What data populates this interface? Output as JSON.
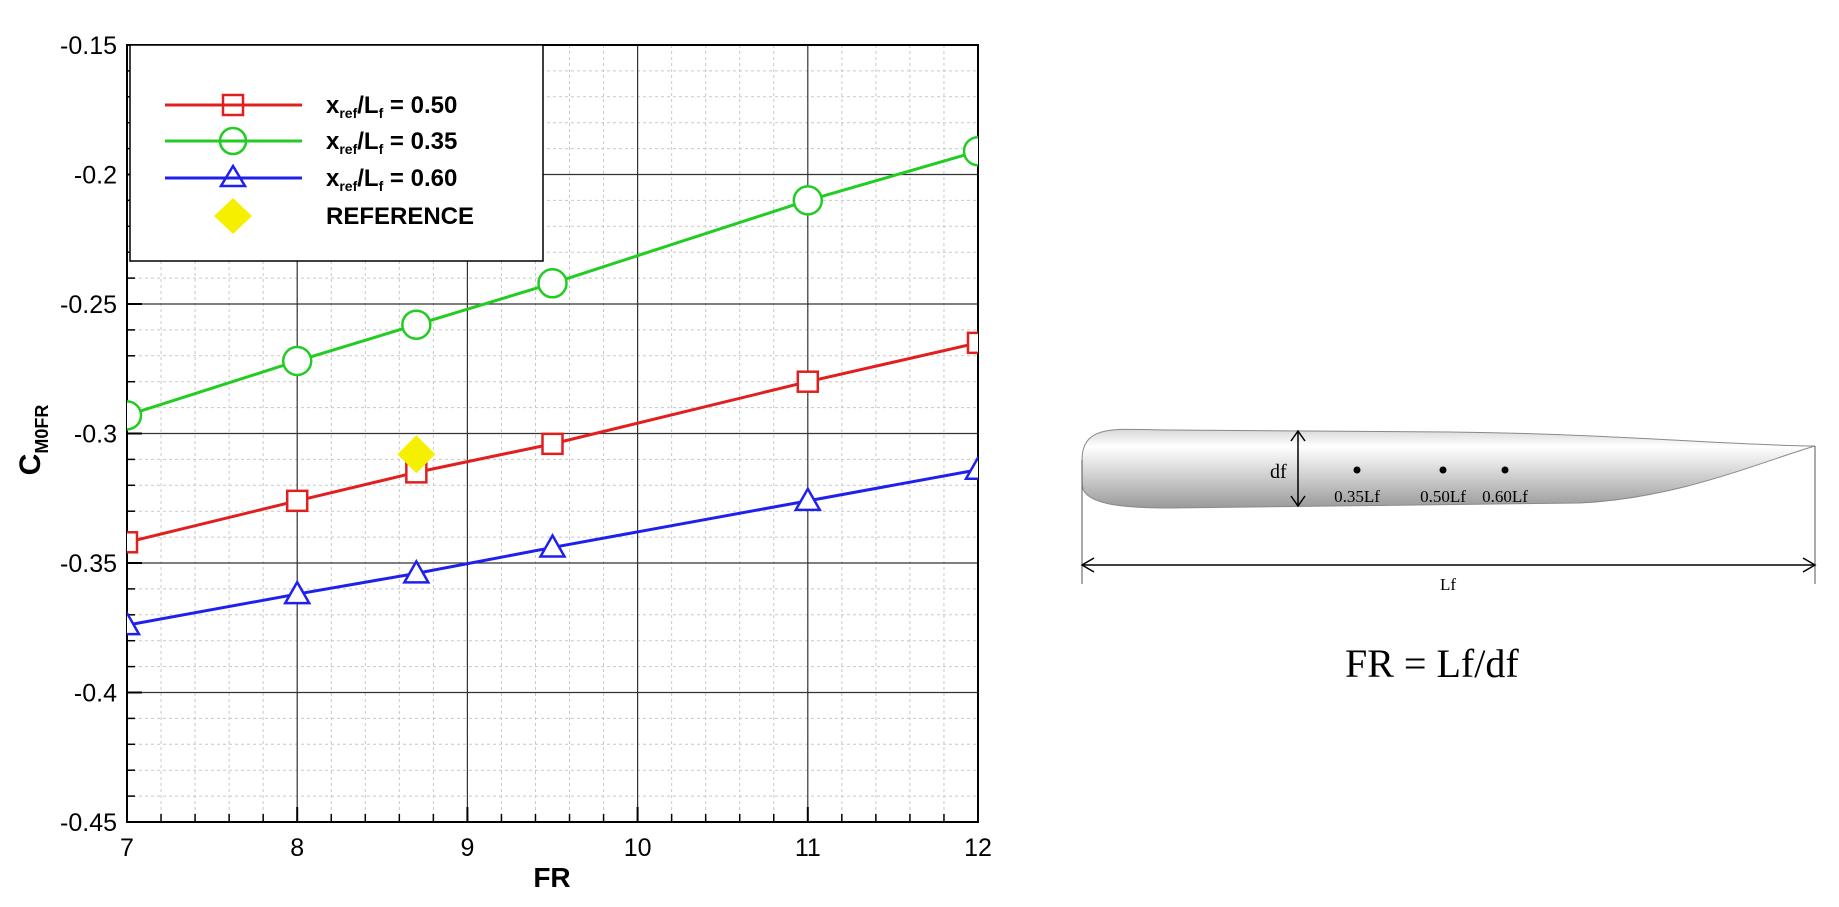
{
  "chart_data": {
    "type": "line",
    "xlabel": "FR",
    "ylabel": "C",
    "ylabel_sub": "M0FR",
    "xlim": [
      7,
      12
    ],
    "ylim": [
      -0.45,
      -0.15
    ],
    "xticks": [
      7,
      8,
      9,
      10,
      11,
      12
    ],
    "xtick_labels": [
      "7",
      "8",
      "9",
      "10",
      "11",
      "12"
    ],
    "yticks": [
      -0.45,
      -0.4,
      -0.35,
      -0.3,
      -0.25,
      -0.2,
      -0.15
    ],
    "ytick_labels": [
      "-0.45",
      "-0.4",
      "-0.35",
      "-0.3",
      "-0.25",
      "-0.2",
      "-0.15"
    ],
    "grid": true,
    "legend_position": "top-left",
    "x": [
      7,
      8,
      8.7,
      9.5,
      11,
      12
    ],
    "series": [
      {
        "legend_x": "x",
        "legend_sub1": "ref",
        "legend_mid": "/L",
        "legend_sub2": "f",
        "legend_value": " = 0.50",
        "color": "#e02020",
        "marker": "square",
        "values": [
          -0.342,
          -0.326,
          -0.315,
          -0.304,
          -0.28,
          -0.265
        ]
      },
      {
        "legend_x": "x",
        "legend_sub1": "ref",
        "legend_mid": "/L",
        "legend_sub2": "f",
        "legend_value": " = 0.35",
        "color": "#22cc22",
        "marker": "circle",
        "values": [
          -0.293,
          -0.272,
          -0.258,
          -0.242,
          -0.21,
          -0.191
        ]
      },
      {
        "legend_x": "x",
        "legend_sub1": "ref",
        "legend_mid": "/L",
        "legend_sub2": "f",
        "legend_value": " = 0.60",
        "color": "#2020ee",
        "marker": "triangle",
        "values": [
          -0.374,
          -0.362,
          -0.354,
          -0.344,
          -0.326,
          -0.314
        ]
      }
    ],
    "reference": {
      "name": "REFERENCE",
      "color": "#f5f000",
      "marker": "diamond",
      "x": 8.7,
      "y": -0.308
    }
  },
  "diagram": {
    "df_label": "df",
    "positions": [
      "0.35Lf",
      "0.50Lf",
      "0.60Lf"
    ],
    "lf_label": "Lf",
    "formula": "FR = Lf/df"
  }
}
